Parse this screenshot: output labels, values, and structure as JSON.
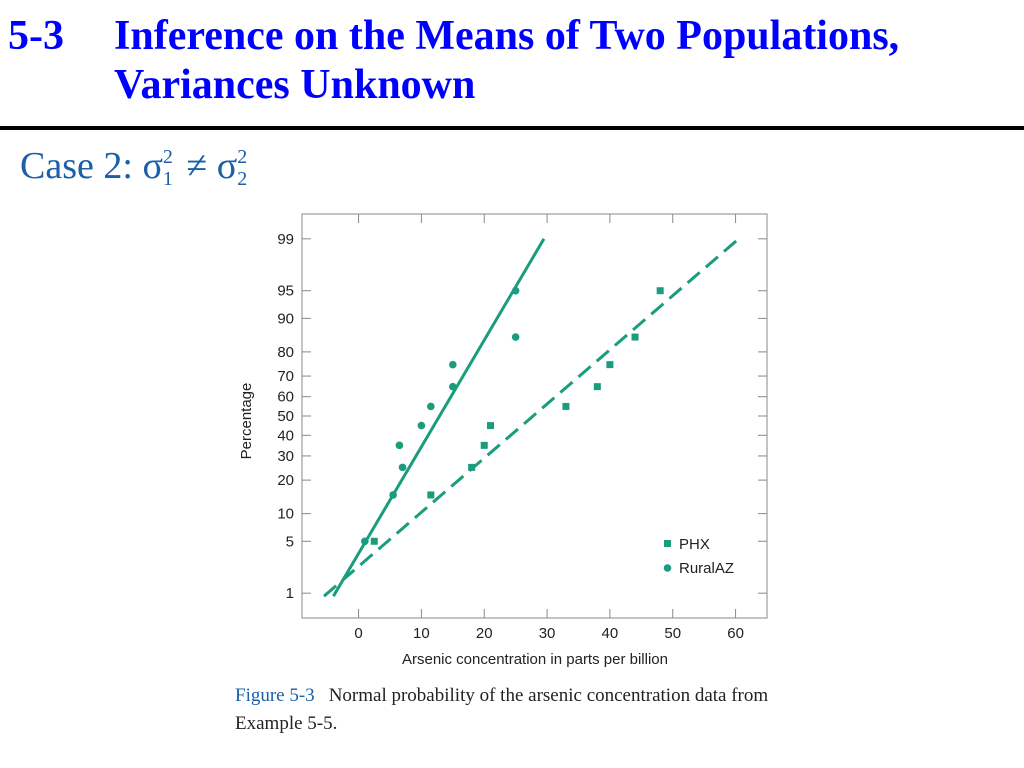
{
  "slide": {
    "number": "5-3",
    "title": "Inference on the Means of Two Populations, Variances Unknown",
    "case_prefix": "Case 2:",
    "case_formula": {
      "left_sym": "σ",
      "left_sub": "1",
      "sup": "2",
      "relation": "≠",
      "right_sym": "σ",
      "right_sub": "2"
    }
  },
  "caption": {
    "figure_label": "Figure 5-3",
    "text": "Normal probability of the arsenic concentration data from Example 5-5."
  },
  "colors": {
    "title": "#0000ff",
    "series": "#1a9c7d",
    "case": "#1a5fa8"
  },
  "chart_data": {
    "type": "scatter",
    "xlabel": "Arsenic concentration in parts per billion",
    "ylabel": "Percentage",
    "xlim": [
      -9,
      65
    ],
    "xticks": [
      0,
      10,
      20,
      30,
      40,
      50,
      60
    ],
    "ylim_percent": [
      0.4,
      99.6
    ],
    "yticks": [
      1,
      5,
      10,
      20,
      30,
      40,
      50,
      60,
      70,
      80,
      90,
      95,
      99
    ],
    "y_scale": "normal probability",
    "legend_position": "bottom-right",
    "series": [
      {
        "name": "PHX",
        "marker": "square",
        "line_style": "dashed",
        "points": [
          [
            2.5,
            5.0
          ],
          [
            11.5,
            15.0
          ],
          [
            18.0,
            25.0
          ],
          [
            20.0,
            35.0
          ],
          [
            21.0,
            45.0
          ],
          [
            33.0,
            55.0
          ],
          [
            38.0,
            65.0
          ],
          [
            40.0,
            75.0
          ],
          [
            44.0,
            85.0
          ],
          [
            48.0,
            95.0
          ]
        ],
        "fit_line": [
          [
            -5.5,
            0.9
          ],
          [
            60.5,
            99.0
          ]
        ]
      },
      {
        "name": "RuralAZ",
        "marker": "circle",
        "line_style": "solid",
        "points": [
          [
            1.0,
            5.0
          ],
          [
            5.5,
            15.0
          ],
          [
            7.0,
            25.0
          ],
          [
            6.5,
            35.0
          ],
          [
            10.0,
            45.0
          ],
          [
            11.5,
            55.0
          ],
          [
            15.0,
            65.0
          ],
          [
            15.0,
            75.0
          ],
          [
            25.0,
            85.0
          ],
          [
            25.0,
            95.0
          ]
        ],
        "fit_line": [
          [
            -4.0,
            0.9
          ],
          [
            29.5,
            99.0
          ]
        ]
      }
    ]
  }
}
